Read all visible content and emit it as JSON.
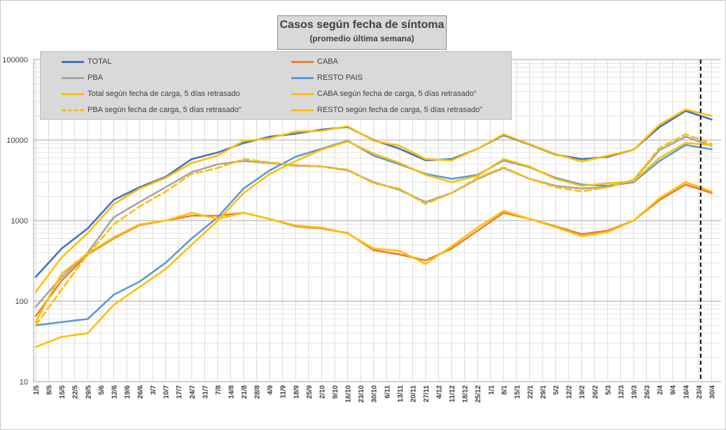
{
  "chart_data": {
    "type": "line",
    "title": "Casos según fecha de síntoma",
    "subtitle": "(promedio última semana)",
    "xlabel": "",
    "ylabel": "",
    "y_scale": "log",
    "ylim": [
      10,
      100000
    ],
    "y_ticks": [
      "10",
      "100",
      "1000",
      "10000",
      "100000"
    ],
    "x_tick_labels": [
      "1/5",
      "8/5",
      "15/5",
      "22/5",
      "29/5",
      "5/6",
      "12/6",
      "19/6",
      "26/6",
      "3/7",
      "10/7",
      "17/7",
      "24/7",
      "31/7",
      "7/8",
      "14/8",
      "21/8",
      "28/8",
      "4/9",
      "11/9",
      "18/9",
      "25/9",
      "2/10",
      "9/10",
      "16/10",
      "23/10",
      "30/10",
      "6/11",
      "13/11",
      "20/11",
      "27/11",
      "4/12",
      "11/12",
      "18/12",
      "25/12",
      "1/1",
      "8/1",
      "15/1",
      "22/1",
      "29/1",
      "5/2",
      "12/2",
      "19/2",
      "26/2",
      "5/3",
      "12/3",
      "19/3",
      "26/3",
      "2/4",
      "9/4",
      "16/4",
      "23/4",
      "30/4"
    ],
    "grid": true,
    "legend_position": "top-left, two columns",
    "vertical_marker_label": "23/4",
    "x_days_note": "x values are dates (day/month)",
    "x": [
      "1/5",
      "15/5",
      "29/5",
      "12/6",
      "26/6",
      "10/7",
      "24/7",
      "7/8",
      "21/8",
      "4/9",
      "18/9",
      "2/10",
      "16/10",
      "30/10",
      "13/11",
      "27/11",
      "11/12",
      "25/12",
      "8/1",
      "22/1",
      "5/2",
      "19/2",
      "5/3",
      "19/3",
      "2/4",
      "16/4",
      "30/4"
    ],
    "series": [
      {
        "name": "TOTAL",
        "color": "#4472c4",
        "dash": "solid",
        "values": [
          200,
          450,
          800,
          1800,
          2600,
          3500,
          5800,
          7000,
          9200,
          11000,
          12000,
          13500,
          14500,
          10000,
          7800,
          5600,
          5800,
          7800,
          11500,
          8800,
          6600,
          5800,
          6200,
          7600,
          14500,
          23000,
          18000
        ]
      },
      {
        "name": "CABA",
        "color": "#ed7d31",
        "dash": "solid",
        "values": [
          65,
          180,
          380,
          600,
          880,
          1000,
          1150,
          1150,
          1250,
          1050,
          850,
          800,
          700,
          430,
          380,
          320,
          450,
          750,
          1250,
          1050,
          850,
          680,
          750,
          1000,
          1800,
          2800,
          2200
        ]
      },
      {
        "name": "PBA",
        "color": "#a5a5a5",
        "dash": "solid",
        "values": [
          85,
          200,
          400,
          1100,
          1700,
          2600,
          4000,
          5000,
          5500,
          5200,
          4800,
          4700,
          4200,
          3000,
          2400,
          1700,
          2200,
          3300,
          4500,
          3300,
          2700,
          2500,
          2600,
          3200,
          7500,
          11000,
          8500
        ]
      },
      {
        "name": "RESTO PAIS",
        "color": "#5b9bd5",
        "dash": "solid",
        "values": [
          50,
          55,
          60,
          120,
          175,
          300,
          600,
          1100,
          2500,
          4200,
          6200,
          7800,
          9800,
          6400,
          5000,
          3800,
          3300,
          3700,
          5600,
          4600,
          3400,
          2800,
          2700,
          3000,
          5500,
          8700,
          7700
        ]
      },
      {
        "name": "Total según fecha de carga, 5 días retrasado",
        "color": "#ffc000",
        "dash": "solid",
        "values": [
          130,
          350,
          700,
          1600,
          2500,
          3400,
          5200,
          6400,
          9800,
          10500,
          12800,
          13000,
          14800,
          9800,
          8500,
          5800,
          5600,
          7800,
          11800,
          8900,
          6700,
          5400,
          6400,
          7600,
          15500,
          24000,
          20000
        ]
      },
      {
        "name": "CABA según fecha de carga, 5 días retrasado\"",
        "color": "#ffc000",
        "dash": "solid",
        "values": [
          55,
          220,
          390,
          620,
          900,
          1000,
          1250,
          1050,
          1250,
          1050,
          870,
          820,
          690,
          450,
          420,
          290,
          480,
          820,
          1320,
          1050,
          830,
          640,
          720,
          1000,
          1900,
          3000,
          2300
        ]
      },
      {
        "name": "PBA según fecha de carga, 5 días retrasado\"",
        "color": "#ffc000",
        "dash": "dashed",
        "values": [
          50,
          140,
          380,
          900,
          1500,
          2300,
          3800,
          4500,
          5800,
          5300,
          4900,
          4700,
          4300,
          2900,
          2500,
          1600,
          2200,
          3400,
          4600,
          3300,
          2600,
          2300,
          2600,
          3200,
          8000,
          11800,
          9000
        ]
      },
      {
        "name": "RESTO según fecha de carga, 5 días retrasado\"",
        "color": "#ffc000",
        "dash": "solid",
        "values": [
          27,
          36,
          40,
          90,
          150,
          250,
          500,
          1000,
          2200,
          3800,
          5500,
          7600,
          9600,
          6800,
          5200,
          3700,
          3000,
          3600,
          5800,
          4700,
          3300,
          2700,
          2900,
          3100,
          6000,
          9200,
          8700
        ]
      }
    ]
  }
}
